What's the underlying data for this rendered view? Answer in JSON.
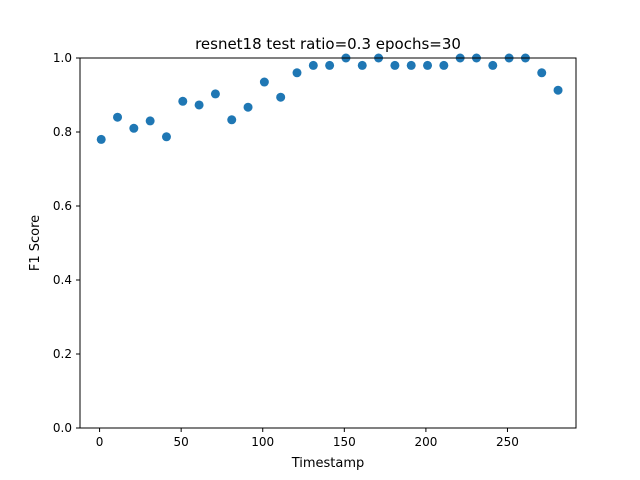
{
  "chart_data": {
    "type": "scatter",
    "title": "resnet18 test ratio=0.3 epochs=30",
    "xlabel": "Timestamp",
    "ylabel": "F1 Score",
    "xlim": [
      -12,
      292
    ],
    "ylim": [
      0,
      1
    ],
    "x_ticks": [
      0,
      50,
      100,
      150,
      200,
      250
    ],
    "y_ticks": [
      0.0,
      0.2,
      0.4,
      0.6,
      0.8,
      1.0
    ],
    "x_tick_labels": [
      "0",
      "50",
      "100",
      "150",
      "200",
      "250"
    ],
    "y_tick_labels": [
      "0.0",
      "0.2",
      "0.4",
      "0.6",
      "0.8",
      "1.0"
    ],
    "grid": false,
    "marker_color": "#1f77b4",
    "series": [
      {
        "x": [
          1,
          11,
          21,
          31,
          41,
          51,
          61,
          71,
          81,
          91,
          101,
          111,
          121,
          131,
          141,
          151,
          161,
          171,
          181,
          191,
          201,
          211,
          221,
          231,
          241,
          251,
          261,
          271,
          281
        ],
        "y": [
          0.78,
          0.84,
          0.81,
          0.83,
          0.787,
          0.883,
          0.873,
          0.903,
          0.833,
          0.867,
          0.935,
          0.894,
          0.96,
          0.98,
          0.98,
          1.0,
          0.98,
          1.0,
          0.98,
          0.98,
          0.98,
          0.98,
          1.0,
          1.0,
          0.98,
          1.0,
          1.0,
          0.96,
          0.913
        ]
      }
    ]
  }
}
